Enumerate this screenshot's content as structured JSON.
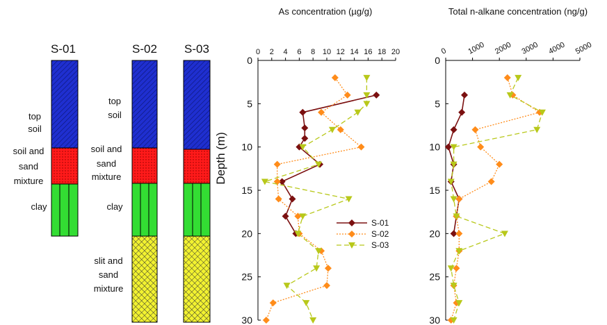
{
  "colors": {
    "top_soil": "#1f2fd0",
    "sand_mix": "#ff1a1a",
    "clay": "#33dd33",
    "slit": "#f2f230",
    "S-01": "#7b1010",
    "S-02": "#ff8c1a",
    "S-03": "#b8c81a"
  },
  "cores": {
    "labels": [
      "S-01",
      "S-02",
      "S-03"
    ],
    "layer_labels": {
      "top_soil": [
        "top",
        "soil"
      ],
      "sand_mix": [
        "soil and",
        "sand",
        "mixture"
      ],
      "clay": [
        "clay"
      ],
      "slit": [
        "slit and",
        "sand",
        "mixture"
      ]
    }
  },
  "chart_data": [
    {
      "type": "line",
      "title": "As concentration (µg/g)",
      "ylabel": "Depth (m)",
      "xlim": [
        0,
        20
      ],
      "ylim": [
        0,
        30
      ],
      "y_inverted": true,
      "xticks": [
        0,
        2,
        4,
        6,
        8,
        10,
        12,
        14,
        16,
        18,
        20
      ],
      "yticks": [
        0,
        5,
        10,
        15,
        20,
        25,
        30
      ],
      "legend_position": "lower-right",
      "series": [
        {
          "name": "S-01",
          "marker": "diamond",
          "line": "solid",
          "points": [
            [
              17.2,
              4
            ],
            [
              6.5,
              6
            ],
            [
              6.8,
              7.8
            ],
            [
              6.8,
              9
            ],
            [
              6.0,
              10
            ],
            [
              9.0,
              12
            ],
            [
              3.5,
              14
            ],
            [
              5.0,
              16
            ],
            [
              4.0,
              18
            ],
            [
              5.5,
              20
            ]
          ]
        },
        {
          "name": "S-02",
          "marker": "diamond",
          "line": "dotted",
          "points": [
            [
              11.2,
              2
            ],
            [
              13.0,
              4
            ],
            [
              9.2,
              6
            ],
            [
              12.0,
              8
            ],
            [
              15.0,
              10
            ],
            [
              2.8,
              12
            ],
            [
              2.8,
              14
            ],
            [
              3.0,
              16
            ],
            [
              5.8,
              18
            ],
            [
              6.0,
              20
            ],
            [
              9.2,
              22
            ],
            [
              10.2,
              24
            ],
            [
              10.0,
              26
            ],
            [
              2.2,
              28
            ],
            [
              1.2,
              30
            ]
          ]
        },
        {
          "name": "S-03",
          "marker": "triangle-down",
          "line": "dashed",
          "points": [
            [
              15.8,
              2
            ],
            [
              15.8,
              4
            ],
            [
              15.8,
              5
            ],
            [
              14.5,
              6
            ],
            [
              10.8,
              8
            ],
            [
              6.5,
              10
            ],
            [
              8.8,
              12
            ],
            [
              1.0,
              14
            ],
            [
              13.2,
              16
            ],
            [
              6.5,
              18
            ],
            [
              5.8,
              20
            ],
            [
              8.8,
              22
            ],
            [
              8.5,
              24
            ],
            [
              4.2,
              26
            ],
            [
              7.0,
              28
            ],
            [
              8.0,
              30
            ]
          ]
        }
      ]
    },
    {
      "type": "line",
      "title": "Total n-alkane concentration (ng/g)",
      "ylabel": "",
      "xlim": [
        0,
        5000
      ],
      "ylim": [
        0,
        30
      ],
      "y_inverted": true,
      "xticks": [
        0,
        1000,
        2000,
        3000,
        4000,
        5000
      ],
      "yticks": [
        0,
        5,
        10,
        15,
        20,
        25,
        30
      ],
      "series": [
        {
          "name": "S-01",
          "marker": "diamond",
          "line": "solid",
          "points": [
            [
              700,
              4
            ],
            [
              600,
              6
            ],
            [
              300,
              8
            ],
            [
              100,
              10
            ],
            [
              300,
              12
            ],
            [
              200,
              14
            ],
            [
              500,
              16
            ],
            [
              400,
              18
            ],
            [
              300,
              20
            ]
          ]
        },
        {
          "name": "S-02",
          "marker": "diamond",
          "line": "dotted",
          "points": [
            [
              2300,
              2
            ],
            [
              2500,
              4
            ],
            [
              3500,
              6
            ],
            [
              1100,
              8
            ],
            [
              1300,
              10
            ],
            [
              2000,
              12
            ],
            [
              1700,
              14
            ],
            [
              500,
              16
            ],
            [
              400,
              18
            ],
            [
              500,
              20
            ],
            [
              500,
              22
            ],
            [
              400,
              24
            ],
            [
              300,
              26
            ],
            [
              400,
              28
            ],
            [
              200,
              30
            ]
          ]
        },
        {
          "name": "S-03",
          "marker": "triangle-down",
          "line": "dashed",
          "points": [
            [
              2700,
              2
            ],
            [
              2400,
              4
            ],
            [
              3600,
              6
            ],
            [
              3400,
              8
            ],
            [
              300,
              10
            ],
            [
              300,
              12
            ],
            [
              200,
              14
            ],
            [
              300,
              16
            ],
            [
              400,
              18
            ],
            [
              2200,
              20
            ],
            [
              500,
              22
            ],
            [
              200,
              24
            ],
            [
              300,
              26
            ],
            [
              500,
              28
            ],
            [
              300,
              30
            ]
          ]
        }
      ]
    }
  ]
}
